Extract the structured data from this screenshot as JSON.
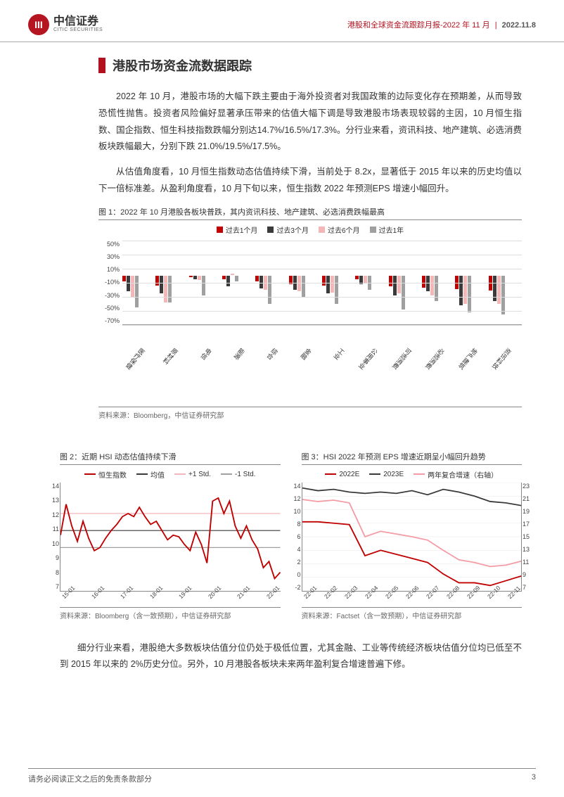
{
  "header": {
    "logo_cn": "中信证券",
    "logo_en": "CITIC SECURITIES",
    "doc_title": "港股和全球资金流跟踪月报-2022 年 11 月",
    "date": "2022.11.8"
  },
  "section_title": "港股市场资金流数据跟踪",
  "para1": "2022 年 10 月，港股市场的大幅下跌主要由于海外投资者对我国政策的边际变化存在预期差，从而导致恐慌性抛售。投资者风险偏好显著承压带来的估值大幅下调是导致港股市场表现较弱的主因，10 月恒生指数、国企指数、恒生科技指数跌幅分别达14.7%/16.5%/17.3%。分行业来看，资讯科技、地产建筑、必选消费板块跌幅最大，分别下跌 21.0%/19.5%/17.5%。",
  "para2": "从估值角度看，10 月恒生指数动态估值持续下滑，当前处于 8.2x，显著低于 2015 年以来的历史均值以下一倍标准差。从盈利角度看，10 月下旬以来，恒生指数 2022 年预测EPS 增速小幅回升。",
  "para3": "细分行业来看，港股绝大多数板块估值分位仍处于极低位置，尤其金融、工业等传统经济板块估值分位均已低至不到 2015 年以来的 2%历史分位。另外，10 月港股各板块未来两年盈利复合增速普遍下修。",
  "chart1": {
    "caption": "图 1：2022 年 10 月港股各板块普跌，其内资讯科技、地产建筑、必选消费跌幅最高",
    "source": "资料来源：Bloomberg，中信证券研究部",
    "legend": [
      "过去1个月",
      "过去3个月",
      "过去6个月",
      "过去1年"
    ],
    "colors": [
      "#c00000",
      "#3a3a3a",
      "#f4b6b6",
      "#a0a0a0"
    ],
    "ymax": 50,
    "ymin": -70,
    "ystep": 20,
    "yticks": [
      "50%",
      "30%",
      "10%",
      "-10%",
      "-30%",
      "-50%",
      "-70%"
    ],
    "categories": [
      "医疗保健",
      "原材料",
      "电信",
      "能源",
      "综合",
      "金融",
      "工业",
      "公用事业",
      "可选消费",
      "必选消费",
      "地产建筑",
      "资讯科技"
    ],
    "values": [
      [
        -8,
        -22,
        -30,
        -45
      ],
      [
        -14,
        -25,
        -38,
        -38
      ],
      [
        -2,
        -5,
        -6,
        -28
      ],
      [
        -5,
        -15,
        2,
        -8
      ],
      [
        -8,
        -18,
        -20,
        -40
      ],
      [
        -12,
        -20,
        -22,
        -30
      ],
      [
        -14,
        -25,
        -24,
        -40
      ],
      [
        -5,
        -12,
        -10,
        -20
      ],
      [
        -15,
        -28,
        -25,
        -48
      ],
      [
        -17,
        -22,
        -28,
        -36
      ],
      [
        -19,
        -42,
        -40,
        -52
      ],
      [
        -21,
        -36,
        -40,
        -55
      ]
    ]
  },
  "chart2": {
    "caption": "图 2：近期 HSI 动态估值持续下滑",
    "source": "资料来源：Bloomberg（含一致预期），中信证券研究部",
    "legend": [
      "恒生指数",
      "均值",
      "+1 Std.",
      "-1 Std."
    ],
    "colors": [
      "#c00000",
      "#3a3a3a",
      "#f4b6b6",
      "#a0a0a0"
    ],
    "ymin": 7,
    "ymax": 14,
    "yticks": [
      "14",
      "13",
      "12",
      "11",
      "10",
      "9",
      "8",
      "7"
    ],
    "xticks": [
      "15-01",
      "16-01",
      "17-01",
      "18-01",
      "19-01",
      "20-01",
      "21-01",
      "22-01"
    ],
    "mean": 10.9,
    "p1": 12.0,
    "m1": 9.8,
    "series": [
      10.6,
      12.6,
      11.2,
      10.2,
      11.5,
      10.4,
      9.6,
      9.8,
      10.4,
      10.9,
      11.3,
      11.8,
      12.0,
      11.8,
      12.4,
      11.8,
      11.3,
      11.5,
      10.9,
      10.3,
      10.6,
      10.5,
      10.0,
      9.6,
      10.8,
      10.0,
      8.8,
      12.8,
      13.0,
      12.0,
      12.8,
      11.2,
      10.4,
      11.2,
      10.3,
      9.7,
      8.5,
      8.9,
      7.8,
      8.2
    ]
  },
  "chart3": {
    "caption": "图 3：HSI 2022 年预测 EPS 增速近期呈小幅回升趋势",
    "source": "资料来源：Factset（含一致预期），中信证券研究部",
    "legend": [
      "2022E",
      "2023E",
      "两年复合增速（右轴）"
    ],
    "colors": [
      "#c00000",
      "#3a3a3a",
      "#f49ca6"
    ],
    "ymin": -2,
    "ymax": 14,
    "yticks": [
      "14",
      "12",
      "10",
      "8",
      "6",
      "4",
      "2",
      "0",
      "-2"
    ],
    "y2min": 7,
    "y2max": 23,
    "y2ticks": [
      "23",
      "21",
      "19",
      "17",
      "15",
      "13",
      "11",
      "9",
      "7"
    ],
    "xticks": [
      "22-01",
      "22-02",
      "22-03",
      "22-04",
      "22-05",
      "22-06",
      "22-07",
      "22-08",
      "22-09",
      "22-10",
      "22-11"
    ],
    "s2022": [
      8.2,
      8.2,
      8.0,
      7.8,
      3.2,
      4.0,
      3.4,
      2.8,
      2.2,
      0.5,
      -0.8,
      -0.8,
      -1.2,
      -0.5,
      0.2
    ],
    "s2023": [
      13.2,
      12.8,
      13.0,
      12.6,
      12.4,
      12.6,
      12.4,
      12.8,
      12.2,
      13.0,
      12.6,
      12.0,
      11.2,
      11.0,
      10.6
    ],
    "scomp": [
      20.5,
      20.2,
      20.4,
      20.0,
      15.0,
      15.8,
      15.4,
      15.0,
      14.5,
      13.0,
      11.6,
      11.2,
      10.6,
      10.8,
      11.4
    ]
  },
  "footer": {
    "disclaimer": "请务必阅读正文之后的免责条款部分",
    "page": "3"
  }
}
